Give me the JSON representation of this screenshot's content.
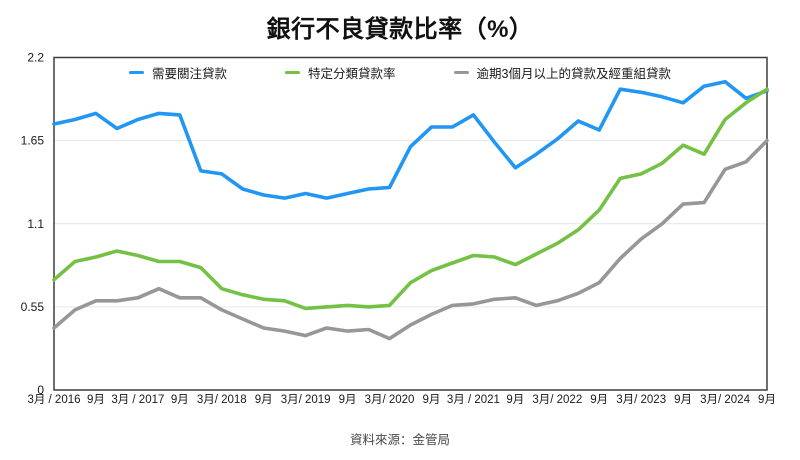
{
  "title": "銀行不良貸款比率（%）",
  "source": "資料來源：金管局",
  "chart_data": {
    "type": "line",
    "title": "銀行不良貸款比率（%）",
    "legend_position": "top",
    "grid": "horizontal",
    "x_points": 35,
    "x_frequency": "quarterly",
    "x_tick_labels": [
      "3月 / 2016",
      "9月",
      "3月 / 2017",
      "9月",
      "3月/ 2018",
      "9月",
      "3月/ 2019",
      "9月",
      "3月/ 2020",
      "9月",
      "3月 / 2021",
      "9月",
      "3月/ 2022",
      "9月",
      "3月/ 2023",
      "9月",
      "3月/ 2024",
      "9月"
    ],
    "y_ticks": [
      "0",
      "0.55",
      "1.1",
      "1.65",
      "2.2"
    ],
    "y_tick_values": [
      0,
      0.55,
      1.1,
      1.65,
      2.2
    ],
    "ylim": [
      0,
      2.2
    ],
    "axis_color": "#3d3d3d",
    "gridline_color": "#e7e7e7",
    "series": [
      {
        "name": "需要關注貸款",
        "color": "#2196f3",
        "values": [
          1.76,
          1.79,
          1.83,
          1.73,
          1.79,
          1.83,
          1.82,
          1.45,
          1.43,
          1.33,
          1.29,
          1.27,
          1.3,
          1.27,
          1.3,
          1.33,
          1.34,
          1.61,
          1.74,
          1.74,
          1.82,
          1.64,
          1.47,
          1.56,
          1.66,
          1.78,
          1.72,
          1.99,
          1.97,
          1.94,
          1.9,
          2.01,
          2.04,
          1.93,
          1.98
        ]
      },
      {
        "name": "特定分類貸款率",
        "color": "#74c143",
        "values": [
          0.73,
          0.85,
          0.88,
          0.92,
          0.89,
          0.85,
          0.85,
          0.81,
          0.67,
          0.63,
          0.6,
          0.59,
          0.54,
          0.55,
          0.56,
          0.55,
          0.56,
          0.71,
          0.79,
          0.84,
          0.89,
          0.88,
          0.83,
          0.9,
          0.97,
          1.06,
          1.19,
          1.4,
          1.43,
          1.5,
          1.62,
          1.56,
          1.79,
          1.9,
          1.99
        ]
      },
      {
        "name": "逾期3個月以上的貸款及經重組貸款",
        "color": "#979797",
        "values": [
          0.41,
          0.53,
          0.59,
          0.59,
          0.61,
          0.67,
          0.61,
          0.61,
          0.53,
          0.47,
          0.41,
          0.39,
          0.36,
          0.41,
          0.39,
          0.4,
          0.34,
          0.43,
          0.5,
          0.56,
          0.57,
          0.6,
          0.61,
          0.56,
          0.59,
          0.64,
          0.71,
          0.87,
          1.0,
          1.1,
          1.23,
          1.24,
          1.46,
          1.51,
          1.65
        ]
      }
    ]
  }
}
